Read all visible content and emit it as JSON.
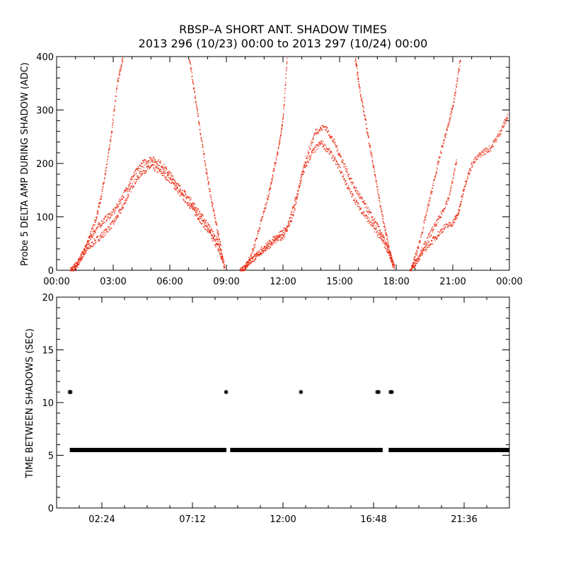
{
  "title": {
    "line1": "RBSP–A SHORT ANT. SHADOW TIMES",
    "line2": "2013 296 (10/23) 00:00 to 2013 297 (10/24) 00:00"
  },
  "colors": {
    "top_series": "#e8250c",
    "bottom_series": "#000000",
    "axes": "#000000"
  },
  "chart_data": [
    {
      "type": "scatter",
      "panel": "top",
      "ylabel": "Probe 5 DELTA AMP DURING SHADOW (ADC)",
      "xlabel": "",
      "xlim": [
        0,
        24
      ],
      "ylim": [
        0,
        400
      ],
      "xticks": [
        {
          "value": 0,
          "label": "00:00"
        },
        {
          "value": 3,
          "label": "03:00"
        },
        {
          "value": 6,
          "label": "06:00"
        },
        {
          "value": 9,
          "label": "09:00"
        },
        {
          "value": 12,
          "label": "12:00"
        },
        {
          "value": 15,
          "label": "15:00"
        },
        {
          "value": 18,
          "label": "18:00"
        },
        {
          "value": 21,
          "label": "21:00"
        },
        {
          "value": 24,
          "label": "00:00"
        }
      ],
      "yticks": [
        {
          "value": 0,
          "label": "0"
        },
        {
          "value": 100,
          "label": "100"
        },
        {
          "value": 200,
          "label": "200"
        },
        {
          "value": 300,
          "label": "300"
        },
        {
          "value": 400,
          "label": "400"
        }
      ],
      "series": [
        {
          "x": [
            0.7,
            1.0,
            1.5,
            2.0,
            2.5,
            3.0,
            3.5,
            4.0,
            4.5,
            5.0,
            5.5,
            6.0,
            6.5,
            7.0,
            7.5,
            8.0,
            8.5,
            8.9
          ],
          "y": [
            0,
            10,
            35,
            55,
            70,
            90,
            120,
            160,
            185,
            195,
            185,
            170,
            145,
            125,
            100,
            75,
            45,
            5
          ]
        },
        {
          "x": [
            0.8,
            1.2,
            1.6,
            2.0,
            2.5,
            3.0,
            3.5,
            4.0,
            4.5,
            5.0,
            5.5,
            6.0,
            6.5,
            7.0,
            7.5,
            8.0,
            8.5,
            8.9
          ],
          "y": [
            0,
            20,
            50,
            75,
            95,
            110,
            140,
            175,
            200,
            210,
            200,
            180,
            155,
            135,
            110,
            85,
            55,
            10
          ]
        },
        {
          "x": [
            1.0,
            1.5,
            2.0,
            2.3,
            2.6,
            2.9,
            3.2,
            3.5
          ],
          "y": [
            5,
            40,
            90,
            130,
            190,
            260,
            350,
            400
          ]
        },
        {
          "x": [
            7.0,
            7.3,
            7.6,
            7.9,
            8.2,
            8.5,
            8.8
          ],
          "y": [
            400,
            330,
            260,
            190,
            130,
            75,
            20
          ]
        },
        {
          "x": [
            9.7,
            10.0,
            10.5,
            11.0,
            11.5,
            12.0,
            12.5,
            13.0,
            13.5,
            14.0,
            14.5,
            15.0,
            15.5,
            16.0,
            16.5,
            17.0,
            17.5,
            17.9
          ],
          "y": [
            0,
            10,
            25,
            40,
            55,
            65,
            100,
            180,
            220,
            240,
            220,
            190,
            150,
            120,
            95,
            70,
            40,
            5
          ]
        },
        {
          "x": [
            9.8,
            10.2,
            10.7,
            11.2,
            11.7,
            12.2,
            12.7,
            13.2,
            13.7,
            14.2,
            14.7,
            15.2,
            15.7,
            16.2,
            16.7,
            17.2,
            17.6,
            17.9
          ],
          "y": [
            0,
            15,
            35,
            50,
            65,
            80,
            140,
            210,
            260,
            270,
            240,
            200,
            160,
            130,
            100,
            70,
            35,
            5
          ]
        },
        {
          "x": [
            10.0,
            10.4,
            10.8,
            11.2,
            11.5,
            11.8,
            12.0,
            12.2
          ],
          "y": [
            5,
            40,
            90,
            140,
            190,
            240,
            290,
            400
          ]
        },
        {
          "x": [
            15.8,
            16.0,
            16.3,
            16.6,
            16.9,
            17.2,
            17.5,
            17.8
          ],
          "y": [
            400,
            350,
            290,
            230,
            170,
            110,
            60,
            10
          ]
        },
        {
          "x": [
            18.7,
            19.0,
            19.5,
            20.0,
            20.5,
            21.0,
            21.3,
            21.6,
            22.0,
            22.5,
            23.0,
            23.5,
            23.9
          ],
          "y": [
            0,
            15,
            40,
            60,
            80,
            90,
            110,
            160,
            200,
            220,
            230,
            260,
            290
          ]
        },
        {
          "x": [
            18.8,
            19.3,
            19.8,
            20.3,
            20.8,
            21.2
          ],
          "y": [
            5,
            35,
            70,
            100,
            140,
            210
          ]
        },
        {
          "x": [
            18.8,
            19.2,
            19.6,
            20.0,
            20.4,
            20.8,
            21.1,
            21.4
          ],
          "y": [
            5,
            50,
            110,
            170,
            230,
            280,
            330,
            400
          ]
        }
      ]
    },
    {
      "type": "scatter",
      "panel": "bottom",
      "ylabel": "TIME BETWEEN SHADOWS (SEC)",
      "xlabel": "",
      "xlim": [
        0,
        1440
      ],
      "ylim": [
        0,
        20
      ],
      "xticks": [
        {
          "value": 144,
          "label": "02:24"
        },
        {
          "value": 432,
          "label": "07:12"
        },
        {
          "value": 720,
          "label": "12:00"
        },
        {
          "value": 1008,
          "label": "16:48"
        },
        {
          "value": 1296,
          "label": "21:36"
        }
      ],
      "yticks": [
        {
          "value": 0,
          "label": "0"
        },
        {
          "value": 5,
          "label": "5"
        },
        {
          "value": 10,
          "label": "10"
        },
        {
          "value": 15,
          "label": "15"
        },
        {
          "value": 20,
          "label": "20"
        }
      ],
      "baseline_value": 5.5,
      "baseline_segments": [
        [
          42,
          540
        ],
        [
          552,
          1037
        ],
        [
          1056,
          1440
        ]
      ],
      "markers": [
        {
          "x": 42,
          "y": 11
        },
        {
          "x": 44,
          "y": 11
        },
        {
          "x": 539,
          "y": 11
        },
        {
          "x": 777,
          "y": 11
        },
        {
          "x": 1020,
          "y": 11
        },
        {
          "x": 1024,
          "y": 11
        },
        {
          "x": 1062,
          "y": 11
        },
        {
          "x": 1066,
          "y": 11
        }
      ]
    }
  ]
}
